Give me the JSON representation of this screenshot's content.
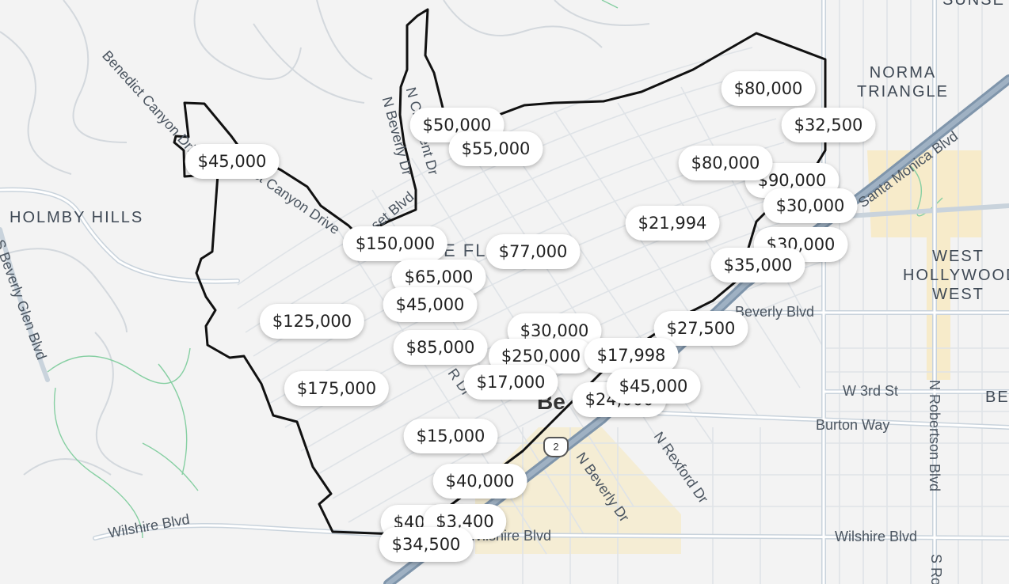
{
  "areas": {
    "holmby_hills": "HOLMBY HILLS",
    "norma_triangle": "NORMA\nTRIANGLE",
    "west_hollywood_west": "WEST\nHOLLYWOOD\nWEST",
    "sunset_partial": "SUNSE",
    "be_partial": "BE"
  },
  "streets": {
    "benedict_canyon_top": "Benedict Canyon Drive",
    "benedict_canyon_mid": "Benedict Canyon Drive",
    "n_beverly_dr_top": "N Beverly Dr",
    "n_crescent_dr_top": "N Crescent Dr",
    "beverly_blvd": "Beverly Blvd",
    "santa_monica_blvd": "Santa Monica Blvd",
    "beverly_glen_blvd": "S Beverly Glen Blvd",
    "w_3rd_st": "W 3rd St",
    "burton_way": "Burton Way",
    "n_robertson_blvd": "N Robertson Blvd",
    "s_robertson_blvd": "S Ro",
    "wilshire_west": "Wilshire Blvd",
    "wilshire_mid": "Wilshire Blvd",
    "wilshire_east": "Wilshire Blvd",
    "n_beverly_dr_bottom": "N Beverly Dr",
    "n_rexford_dr": "N Rexford Dr",
    "sunset_blvd_partial": "Sunset Blvd",
    "beverly_hills_partial": "Be",
    "plaza_fl": "E FL",
    "r_dr": "R Dr"
  },
  "route_shield": "2",
  "colors": {
    "background": "#f3f3f3",
    "road": "#ffffff",
    "major_road": "#c9d3dc",
    "highway": "#7f95ab",
    "commercial": "#f7e9bf",
    "park": "#9fd6b0",
    "boundary": "#111111"
  },
  "price_pins": [
    {
      "label": "$80,000"
    },
    {
      "label": "$32,500"
    },
    {
      "label": "$50,000"
    },
    {
      "label": "$55,000"
    },
    {
      "label": "$45,000"
    },
    {
      "label": "$80,000"
    },
    {
      "label": "$90,000"
    },
    {
      "label": "$30,000"
    },
    {
      "label": "$21,994"
    },
    {
      "label": "$30,000"
    },
    {
      "label": "$35,000"
    },
    {
      "label": "$150,000"
    },
    {
      "label": "$77,000"
    },
    {
      "label": "$65,000"
    },
    {
      "label": "$45,000"
    },
    {
      "label": "$125,000"
    },
    {
      "label": "$30,000"
    },
    {
      "label": "$27,500"
    },
    {
      "label": "$85,000"
    },
    {
      "label": "$250,000"
    },
    {
      "label": "$17,998"
    },
    {
      "label": "$17,000"
    },
    {
      "label": "$45,000"
    },
    {
      "label": "$175,000"
    },
    {
      "label": "$24,000"
    },
    {
      "label": "$15,000"
    },
    {
      "label": "$40,000"
    },
    {
      "label": "$40,000"
    },
    {
      "label": "$3,400"
    },
    {
      "label": "$34,500"
    }
  ]
}
